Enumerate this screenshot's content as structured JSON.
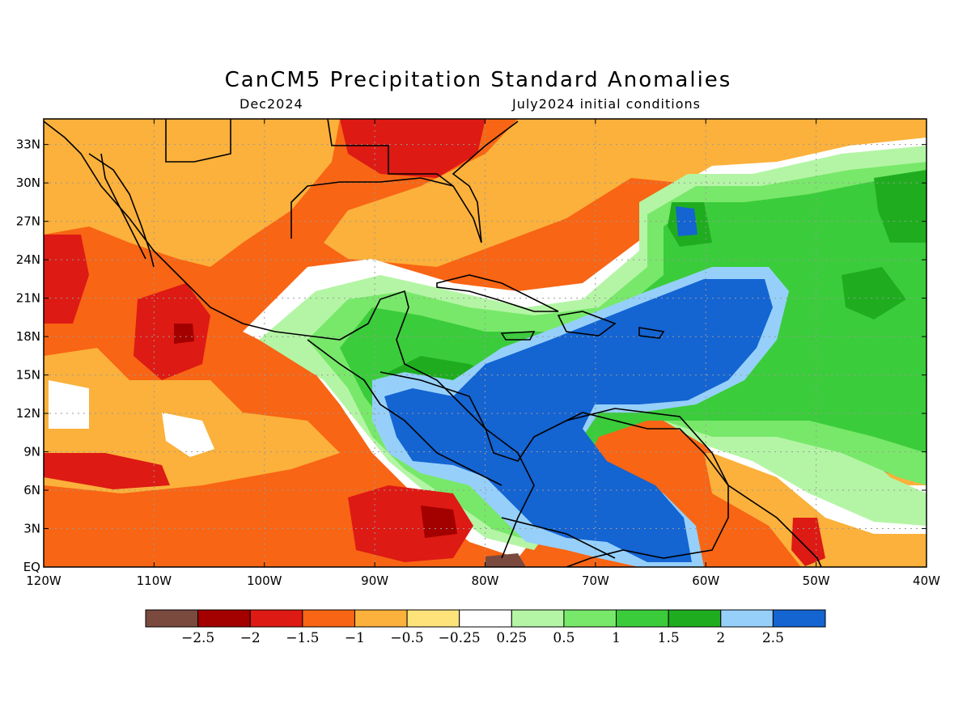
{
  "title": "CanCM5 Precipitation Standard Anomalies",
  "subtitle_left": "Dec2024",
  "subtitle_right": "July2024 initial conditions",
  "map": {
    "lon_range": [
      -120,
      -40
    ],
    "lat_range": [
      0,
      35
    ],
    "lat_ticks": [
      "33N",
      "30N",
      "27N",
      "24N",
      "21N",
      "18N",
      "15N",
      "12N",
      "9N",
      "6N",
      "3N",
      "EQ"
    ],
    "lat_values": [
      33,
      30,
      27,
      24,
      21,
      18,
      15,
      12,
      9,
      6,
      3,
      0
    ],
    "lon_ticks": [
      "120W",
      "110W",
      "100W",
      "90W",
      "80W",
      "70W",
      "60W",
      "50W",
      "40W"
    ],
    "lon_values": [
      -120,
      -110,
      -100,
      -90,
      -80,
      -70,
      -60,
      -50,
      -40
    ],
    "grid": true
  },
  "colorbar": {
    "colors": [
      "#7a4a3f",
      "#a30000",
      "#dd1a14",
      "#f86514",
      "#fbb13b",
      "#fee37a",
      "#ffffff",
      "#b4f5a5",
      "#78e86a",
      "#3bcc3b",
      "#1fad1f",
      "#96d0fa",
      "#1464d2"
    ],
    "labels": [
      "−2.5",
      "−2",
      "−1.5",
      "−1",
      "−0.5",
      "−0.25",
      "0.25",
      "0.5",
      "1",
      "1.5",
      "2",
      "2.5"
    ]
  }
}
